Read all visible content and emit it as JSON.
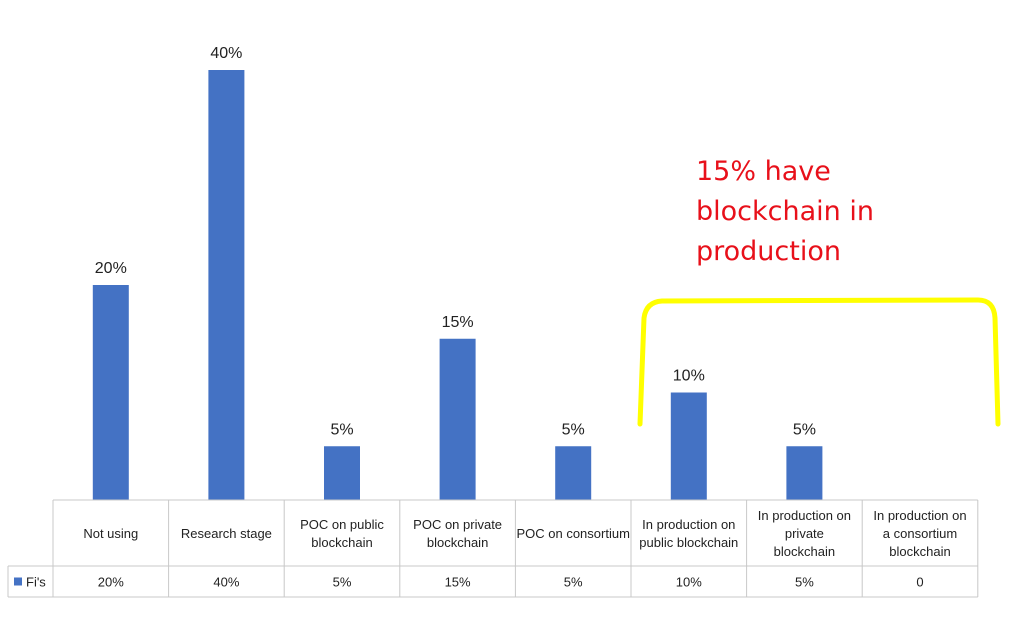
{
  "chart_data": {
    "type": "bar",
    "categories": [
      "Not using",
      "Research stage",
      "POC on public blockchain",
      "POC on private blockchain",
      "POC on consortium",
      "In production on public blockchain",
      "In production on private blockchain",
      "In production on a consortium blockchain"
    ],
    "series": [
      {
        "name": "Fi's",
        "values": [
          20,
          40,
          5,
          15,
          5,
          10,
          5,
          0
        ],
        "data_labels": [
          "20%",
          "40%",
          "5%",
          "15%",
          "5%",
          "10%",
          "5%",
          ""
        ],
        "table_values": [
          "20%",
          "40%",
          "5%",
          "15%",
          "5%",
          "10%",
          "5%",
          "0"
        ]
      }
    ],
    "ylim": [
      0,
      40
    ],
    "grid": false,
    "legend": "data-table",
    "bar_color": "#4472c4"
  },
  "annotation": {
    "text": "15% have\nblockchain in\nproduction",
    "text_color": "#e8101a",
    "bracket_color": "#ffff00"
  }
}
